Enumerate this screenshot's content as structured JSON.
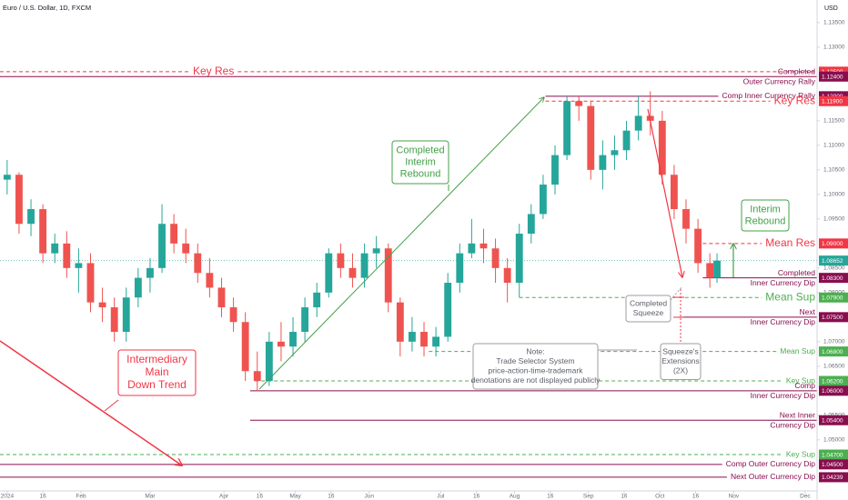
{
  "chart_data": {
    "type": "candlestick",
    "title": "Euro / U.S. Dollar, 1D, FXCM",
    "currency": "USD",
    "xlim": [
      -3,
      340
    ],
    "ylim": [
      1.0396,
      1.1396
    ],
    "xticks": [
      {
        "value": 0,
        "label": "2024"
      },
      {
        "value": 15,
        "label": "16"
      },
      {
        "value": 31,
        "label": "Feb"
      },
      {
        "value": 60,
        "label": "Mar"
      },
      {
        "value": 91,
        "label": "Apr"
      },
      {
        "value": 106,
        "label": "16"
      },
      {
        "value": 121,
        "label": "May"
      },
      {
        "value": 136,
        "label": "16"
      },
      {
        "value": 152,
        "label": "Jun"
      },
      {
        "value": 182,
        "label": "Jul"
      },
      {
        "value": 197,
        "label": "16"
      },
      {
        "value": 213,
        "label": "Aug"
      },
      {
        "value": 228,
        "label": "16"
      },
      {
        "value": 244,
        "label": "Sep"
      },
      {
        "value": 259,
        "label": "16"
      },
      {
        "value": 274,
        "label": "Oct"
      },
      {
        "value": 289,
        "label": "16"
      },
      {
        "value": 305,
        "label": "Nov"
      },
      {
        "value": 335,
        "label": "Dec"
      }
    ],
    "yticks": [
      {
        "value": 1.135,
        "label": "1.13500"
      },
      {
        "value": 1.13,
        "label": "1.13000"
      },
      {
        "value": 1.115,
        "label": "1.11500"
      },
      {
        "value": 1.11,
        "label": "1.11000"
      },
      {
        "value": 1.105,
        "label": "1.10500"
      },
      {
        "value": 1.1,
        "label": "1.10000"
      },
      {
        "value": 1.095,
        "label": "1.09500"
      },
      {
        "value": 1.085,
        "label": "1.08500"
      },
      {
        "value": 1.08,
        "label": "1.08000"
      },
      {
        "value": 1.07,
        "label": "1.07000"
      },
      {
        "value": 1.065,
        "label": "1.06500"
      },
      {
        "value": 1.055,
        "label": "1.05500"
      },
      {
        "value": 1.05,
        "label": "1.05000"
      }
    ],
    "up_color": "#26a69a",
    "down_color": "#ef5350",
    "x": [
      0,
      5,
      10,
      15,
      20,
      25,
      30,
      35,
      40,
      45,
      50,
      55,
      60,
      65,
      70,
      75,
      80,
      85,
      90,
      95,
      100,
      105,
      110,
      115,
      120,
      125,
      130,
      135,
      140,
      145,
      150,
      155,
      160,
      165,
      170,
      175,
      180,
      185,
      190,
      195,
      200,
      205,
      210,
      215,
      220,
      225,
      230,
      235,
      240,
      245,
      250,
      255,
      260,
      265,
      270,
      275,
      280,
      285,
      290,
      295,
      298
    ],
    "open": [
      1.103,
      1.104,
      1.094,
      1.097,
      1.088,
      1.09,
      1.085,
      1.086,
      1.078,
      1.077,
      1.072,
      1.079,
      1.083,
      1.085,
      1.094,
      1.09,
      1.088,
      1.084,
      1.081,
      1.077,
      1.074,
      1.064,
      1.062,
      1.07,
      1.069,
      1.072,
      1.077,
      1.08,
      1.088,
      1.085,
      1.083,
      1.088,
      1.089,
      1.078,
      1.07,
      1.072,
      1.069,
      1.071,
      1.082,
      1.088,
      1.09,
      1.089,
      1.085,
      1.082,
      1.092,
      1.096,
      1.102,
      1.108,
      1.119,
      1.118,
      1.105,
      1.108,
      1.109,
      1.113,
      1.116,
      1.115,
      1.104,
      1.097,
      1.093,
      1.086,
      1.083
    ],
    "high": [
      1.107,
      1.1045,
      1.099,
      1.098,
      1.092,
      1.0925,
      1.089,
      1.088,
      1.081,
      1.079,
      1.081,
      1.085,
      1.087,
      1.098,
      1.096,
      1.093,
      1.09,
      1.087,
      1.083,
      1.079,
      1.076,
      1.068,
      1.072,
      1.074,
      1.075,
      1.079,
      1.082,
      1.089,
      1.09,
      1.088,
      1.09,
      1.0915,
      1.09,
      1.079,
      1.075,
      1.074,
      1.073,
      1.084,
      1.09,
      1.095,
      1.093,
      1.091,
      1.087,
      1.094,
      1.098,
      1.104,
      1.11,
      1.12,
      1.12,
      1.119,
      1.111,
      1.112,
      1.115,
      1.12,
      1.121,
      1.117,
      1.106,
      1.099,
      1.095,
      1.088,
      1.088
    ],
    "low": [
      1.1,
      1.092,
      1.0915,
      1.086,
      1.086,
      1.083,
      1.08,
      1.076,
      1.074,
      1.07,
      1.07,
      1.077,
      1.08,
      1.084,
      1.088,
      1.086,
      1.082,
      1.079,
      1.075,
      1.072,
      1.062,
      1.06,
      1.061,
      1.066,
      1.067,
      1.07,
      1.075,
      1.079,
      1.083,
      1.081,
      1.081,
      1.085,
      1.076,
      1.067,
      1.068,
      1.067,
      1.067,
      1.07,
      1.08,
      1.087,
      1.086,
      1.082,
      1.078,
      1.079,
      1.09,
      1.095,
      1.1,
      1.107,
      1.115,
      1.103,
      1.101,
      1.105,
      1.107,
      1.111,
      1.112,
      1.102,
      1.095,
      1.09,
      1.084,
      1.081,
      1.082
    ],
    "close": [
      1.104,
      1.094,
      1.097,
      1.088,
      1.09,
      1.085,
      1.086,
      1.078,
      1.077,
      1.072,
      1.079,
      1.083,
      1.085,
      1.094,
      1.09,
      1.088,
      1.084,
      1.081,
      1.077,
      1.074,
      1.064,
      1.062,
      1.07,
      1.069,
      1.072,
      1.077,
      1.08,
      1.088,
      1.085,
      1.083,
      1.088,
      1.089,
      1.078,
      1.07,
      1.072,
      1.069,
      1.071,
      1.082,
      1.088,
      1.09,
      1.089,
      1.085,
      1.082,
      1.092,
      1.096,
      1.102,
      1.108,
      1.119,
      1.118,
      1.105,
      1.108,
      1.109,
      1.113,
      1.116,
      1.115,
      1.104,
      1.097,
      1.093,
      1.086,
      1.083,
      1.0865
    ],
    "last_price": {
      "value": 1.08652,
      "label": "1.08652"
    },
    "levels": [
      {
        "price": {
          "value": 1.125,
          "label": "1.12500"
        },
        "kind": "res",
        "texts": [
          "Key Res"
        ],
        "align": "left",
        "big": true
      },
      {
        "price": {
          "value": 1.124,
          "label": "1.12400"
        },
        "kind": "zone",
        "texts": [
          "Completed",
          "Outer Currency Rally"
        ]
      },
      {
        "price": {
          "value": 1.12,
          "label": "1.12000"
        },
        "kind": "zone",
        "from": 226,
        "texts": [
          "Comp Inner Currency Rally"
        ]
      },
      {
        "price": {
          "value": 1.119,
          "label": "1.11900"
        },
        "kind": "res",
        "from": 226,
        "texts": [
          "Key Res"
        ],
        "big": true
      },
      {
        "price": {
          "value": 1.09,
          "label": "1.09000"
        },
        "kind": "res",
        "from": 292,
        "texts": [
          "Mean Res"
        ],
        "big": true
      },
      {
        "price": {
          "value": 1.083,
          "label": "1.08300"
        },
        "kind": "zone",
        "from": 292,
        "texts": [
          "Completed",
          "Inner Currency Dip"
        ]
      },
      {
        "price": {
          "value": 1.079,
          "label": "1.07900"
        },
        "kind": "sup",
        "from": 215,
        "texts": [
          "Mean Sup"
        ],
        "big": true
      },
      {
        "price": {
          "value": 1.075,
          "label": "1.07500"
        },
        "kind": "zone",
        "from": 282,
        "texts": [
          "Next",
          "Inner Currency Dip"
        ]
      },
      {
        "price": {
          "value": 1.068,
          "label": "1.06800"
        },
        "kind": "sup",
        "from": 177,
        "texts": [
          "Mean Sup"
        ]
      },
      {
        "price": {
          "value": 1.062,
          "label": "1.06200"
        },
        "kind": "sup",
        "from": 104,
        "texts": [
          "Key Sup"
        ]
      },
      {
        "price": {
          "value": 1.06,
          "label": "1.06000"
        },
        "kind": "zone",
        "from": 102,
        "texts": [
          "Comp",
          "Inner Currency Dip"
        ]
      },
      {
        "price": {
          "value": 1.054,
          "label": "1.05400"
        },
        "kind": "zone",
        "from": 102,
        "texts": [
          "Next Inner",
          "Currency Dip"
        ]
      },
      {
        "price": {
          "value": 1.047,
          "label": "1.04700"
        },
        "kind": "sup",
        "texts": [
          "Key Sup"
        ]
      },
      {
        "price": {
          "value": 1.045,
          "label": "1.04500"
        },
        "kind": "zone",
        "texts": [
          "Comp Outer Currency Dip"
        ]
      },
      {
        "price": {
          "value": 1.04239,
          "label": "1.04239"
        },
        "kind": "zone",
        "texts": [
          "Next Outer Currency Dip"
        ]
      }
    ],
    "callouts": [
      {
        "kind": "green",
        "lines": [
          "Completed",
          "Interim",
          "Rebound"
        ]
      },
      {
        "kind": "green",
        "lines": [
          "Interim",
          "Rebound"
        ]
      },
      {
        "kind": "red",
        "lines": [
          "Intermediary",
          "Main",
          "Down Trend"
        ]
      },
      {
        "kind": "gray",
        "lines": [
          "Note:",
          "Trade Selector System",
          "price-action-time-trademark",
          "denotations are not displayed publicly"
        ]
      },
      {
        "kind": "gray",
        "lines": [
          "Completed",
          "Squeeze"
        ]
      },
      {
        "kind": "gray",
        "lines": [
          "Squeeze's",
          "Extensions",
          "(2X)"
        ]
      }
    ]
  }
}
